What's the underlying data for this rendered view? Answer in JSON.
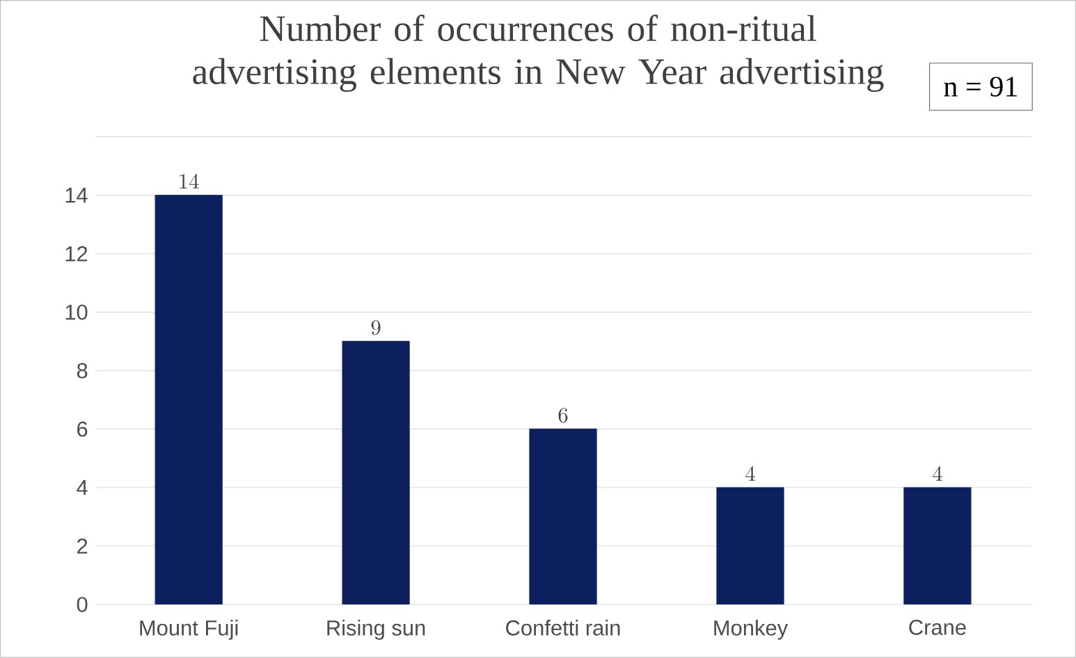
{
  "chart_data": {
    "type": "bar",
    "title": "Number of occurrences of non-ritual advertising elements in New Year advertising",
    "categories": [
      "Mount Fuji",
      "Rising sun",
      "Confetti rain",
      "Monkey",
      "Crane"
    ],
    "values": [
      14,
      9,
      6,
      4,
      4
    ],
    "color": "#0c1f5e",
    "data_labels": true,
    "grid": "y",
    "ylim": [
      0,
      16
    ],
    "yticks": [
      0,
      2,
      4,
      6,
      8,
      10,
      12,
      14,
      {
        "value": 16,
        "label": null
      }
    ],
    "annotations": [
      "n = 91"
    ]
  }
}
